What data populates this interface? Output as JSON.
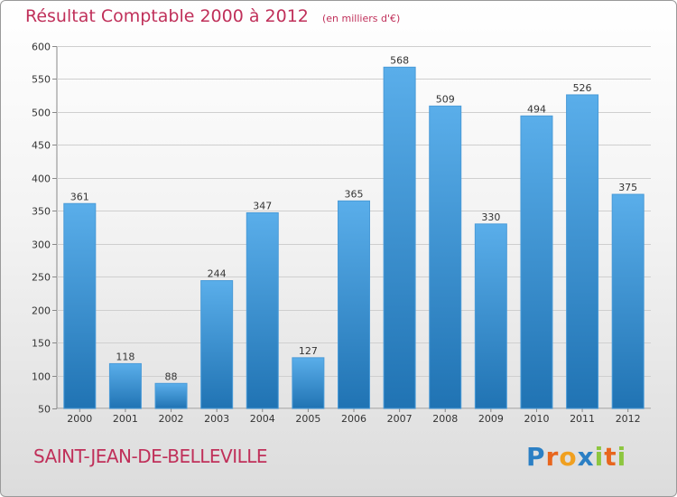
{
  "chart_data": {
    "type": "bar",
    "title": "Résultat Comptable 2000 à 2012",
    "subtitle": "(en milliers d'€)",
    "categories": [
      "2000",
      "2001",
      "2002",
      "2003",
      "2004",
      "2005",
      "2006",
      "2007",
      "2008",
      "2009",
      "2010",
      "2011",
      "2012"
    ],
    "values": [
      361,
      118,
      88,
      244,
      347,
      127,
      365,
      568,
      509,
      330,
      494,
      526,
      375
    ],
    "ylim": [
      50,
      600
    ],
    "yticks": [
      50,
      100,
      150,
      200,
      250,
      300,
      350,
      400,
      450,
      500,
      550,
      600
    ],
    "grid": true,
    "xlabel": "",
    "ylabel": ""
  },
  "commune": "SAINT-JEAN-DE-BELLEVILLE",
  "logo": {
    "text": "Proxiti",
    "letters": [
      "P",
      "r",
      "o",
      "x",
      "i",
      "t",
      "i"
    ],
    "colors": [
      "#2b7fc4",
      "#e8661e",
      "#f0a020",
      "#2b7fc4",
      "#8dc63f",
      "#e8661e",
      "#8dc63f"
    ]
  },
  "colors": {
    "accent": "#c0305a",
    "bar_top": "#5aaeea",
    "bar_bottom": "#2073b3"
  }
}
